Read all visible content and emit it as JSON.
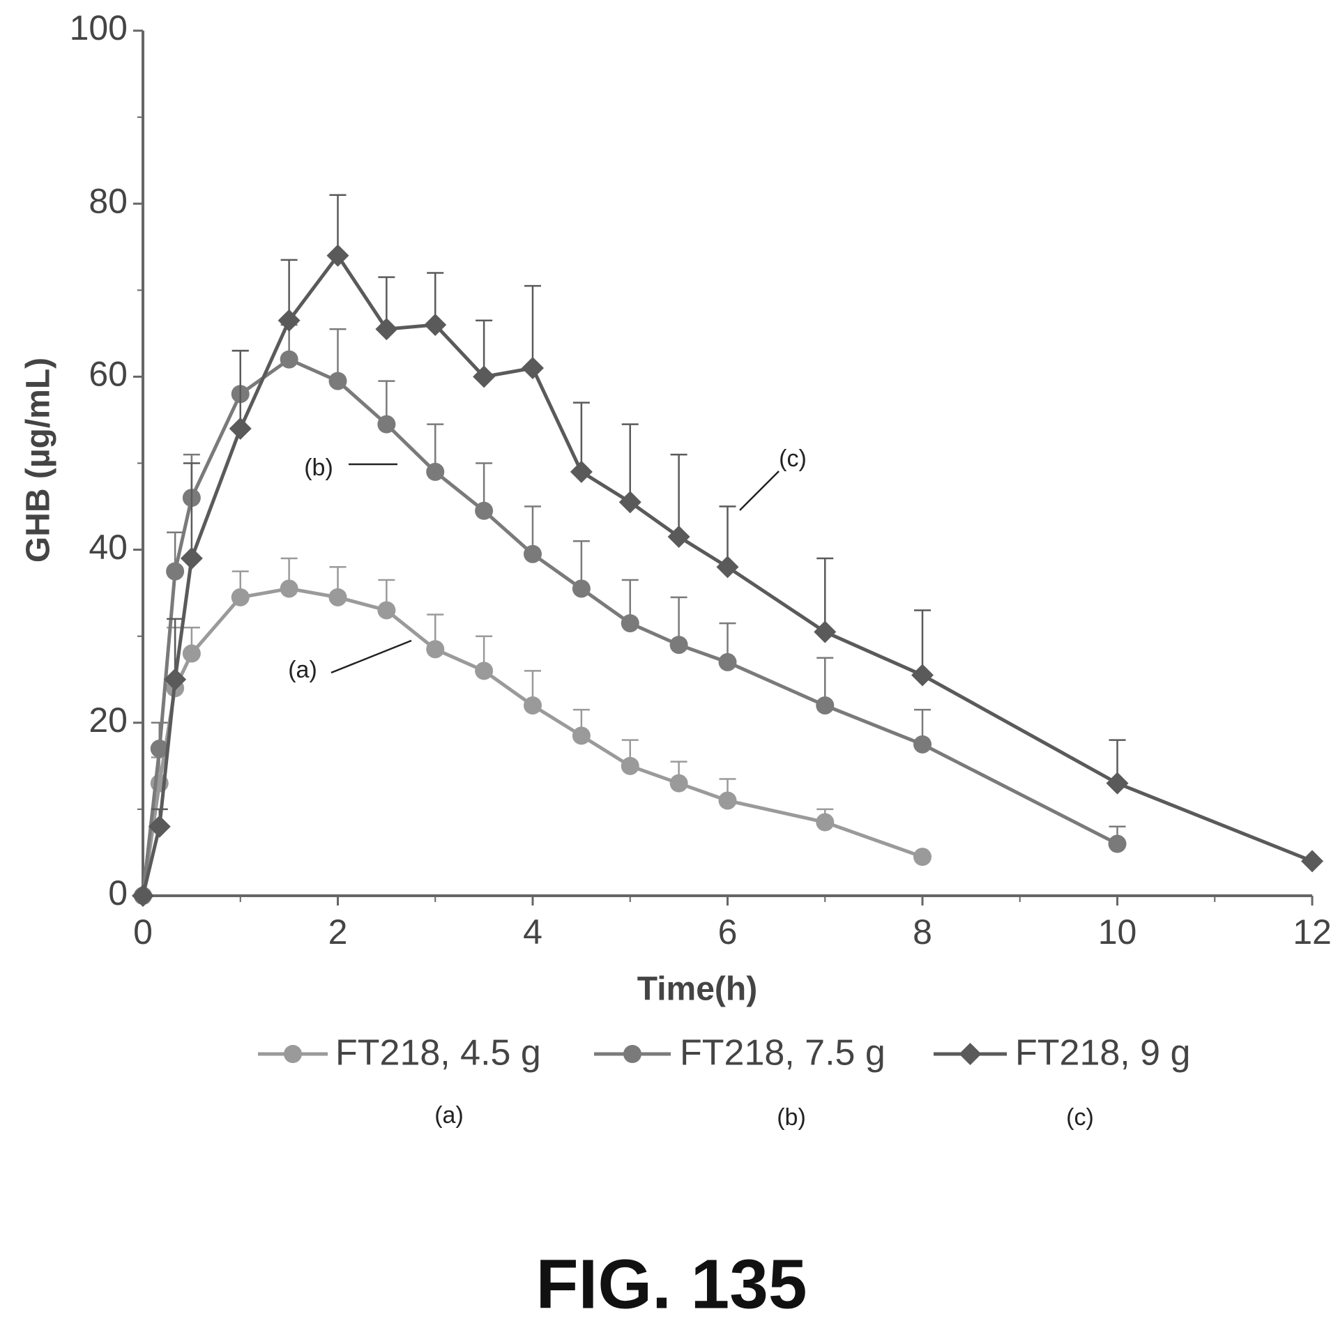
{
  "chart_data": {
    "type": "line",
    "xlabel": "Time(h)",
    "ylabel": "GHB (µg/mL)",
    "caption": "FIG. 135",
    "x": [
      0,
      0.17,
      0.33,
      0.5,
      1,
      1.5,
      2,
      2.5,
      3,
      3.5,
      4,
      4.5,
      5,
      5.5,
      6,
      7,
      8,
      10,
      12
    ],
    "series": [
      {
        "name": "FT218, 4.5 g",
        "color": "#9a9a9a",
        "marker": "circle",
        "values": [
          0,
          13,
          24,
          28,
          34.5,
          35.5,
          34.5,
          33,
          28.5,
          26,
          22,
          18.5,
          15,
          13,
          11,
          8.5,
          4.5,
          null,
          null
        ],
        "errors": [
          null,
          3,
          7,
          3,
          3,
          3.5,
          3.5,
          3.5,
          4,
          4,
          4,
          3,
          3,
          2.5,
          2.5,
          1.5,
          null,
          null,
          null
        ]
      },
      {
        "name": "FT218, 7.5 g",
        "color": "#7a7a7a",
        "marker": "circle",
        "values": [
          0,
          17,
          37.5,
          46,
          58,
          62,
          59.5,
          54.5,
          49,
          44.5,
          39.5,
          35.5,
          31.5,
          29,
          27,
          22,
          17.5,
          6,
          null
        ],
        "errors": [
          null,
          3,
          4.5,
          5,
          5,
          4,
          6,
          5,
          5.5,
          5.5,
          5.5,
          5.5,
          5,
          5.5,
          4.5,
          5.5,
          4,
          2,
          null
        ]
      },
      {
        "name": "FT218, 9 g",
        "color": "#5a5a5a",
        "marker": "diamond",
        "values": [
          0,
          8,
          25,
          39,
          54,
          66.5,
          74,
          65.5,
          66,
          60,
          61,
          49,
          45.5,
          41.5,
          38,
          30.5,
          25.5,
          13,
          4
        ],
        "errors": [
          null,
          2,
          7,
          11,
          9,
          7,
          7,
          6,
          6,
          6.5,
          9.5,
          8,
          9,
          9.5,
          7,
          8.5,
          7.5,
          5,
          null
        ]
      }
    ],
    "annotations": [
      "(a)",
      "(b)",
      "(c)"
    ],
    "legend_notes": [
      "(a)",
      "(b)",
      "(c)"
    ],
    "xlim": [
      0,
      12
    ],
    "xticks": [
      0,
      2,
      4,
      6,
      8,
      10,
      12
    ],
    "xminor_ticks": [
      1,
      3,
      5,
      7,
      9,
      11
    ],
    "ylim": [
      0,
      100
    ],
    "yticks": [
      0,
      20,
      40,
      60,
      80,
      100
    ],
    "yminor_ticks": [
      10,
      30,
      50,
      70,
      90
    ],
    "grid": false
  }
}
